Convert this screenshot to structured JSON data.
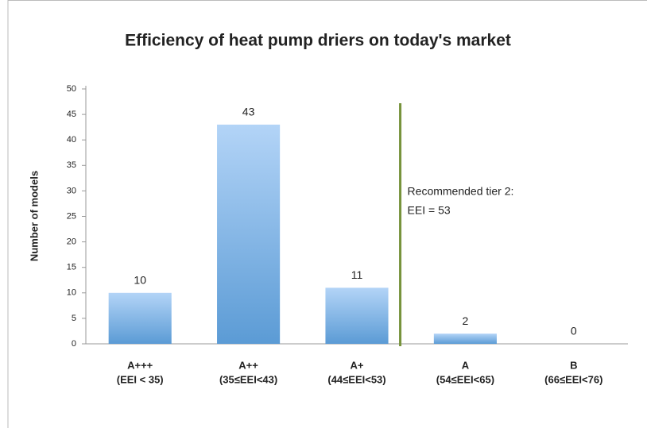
{
  "chart_data": {
    "type": "bar",
    "title": "Efficiency of heat pump driers on today's market",
    "y_label": "Number of models",
    "categories": [
      [
        "A+++",
        "(EEI < 35)"
      ],
      [
        "A++",
        "(35≤EEI<43)"
      ],
      [
        "A+",
        "(44≤EEI<53)"
      ],
      [
        "A",
        "(54≤EEI<65)"
      ],
      [
        "B",
        "(66≤EEI<76)"
      ]
    ],
    "values": [
      10,
      43,
      11,
      2,
      0
    ],
    "color": "#5b9bd5",
    "ylim": [
      0,
      50
    ],
    "yticks": [
      0,
      5,
      10,
      15,
      20,
      25,
      30,
      35,
      40,
      45,
      50
    ],
    "grid": false,
    "annotation": [
      "Recommended tier 2:",
      "EEI = 53"
    ],
    "annotation_color": "#77933c"
  }
}
